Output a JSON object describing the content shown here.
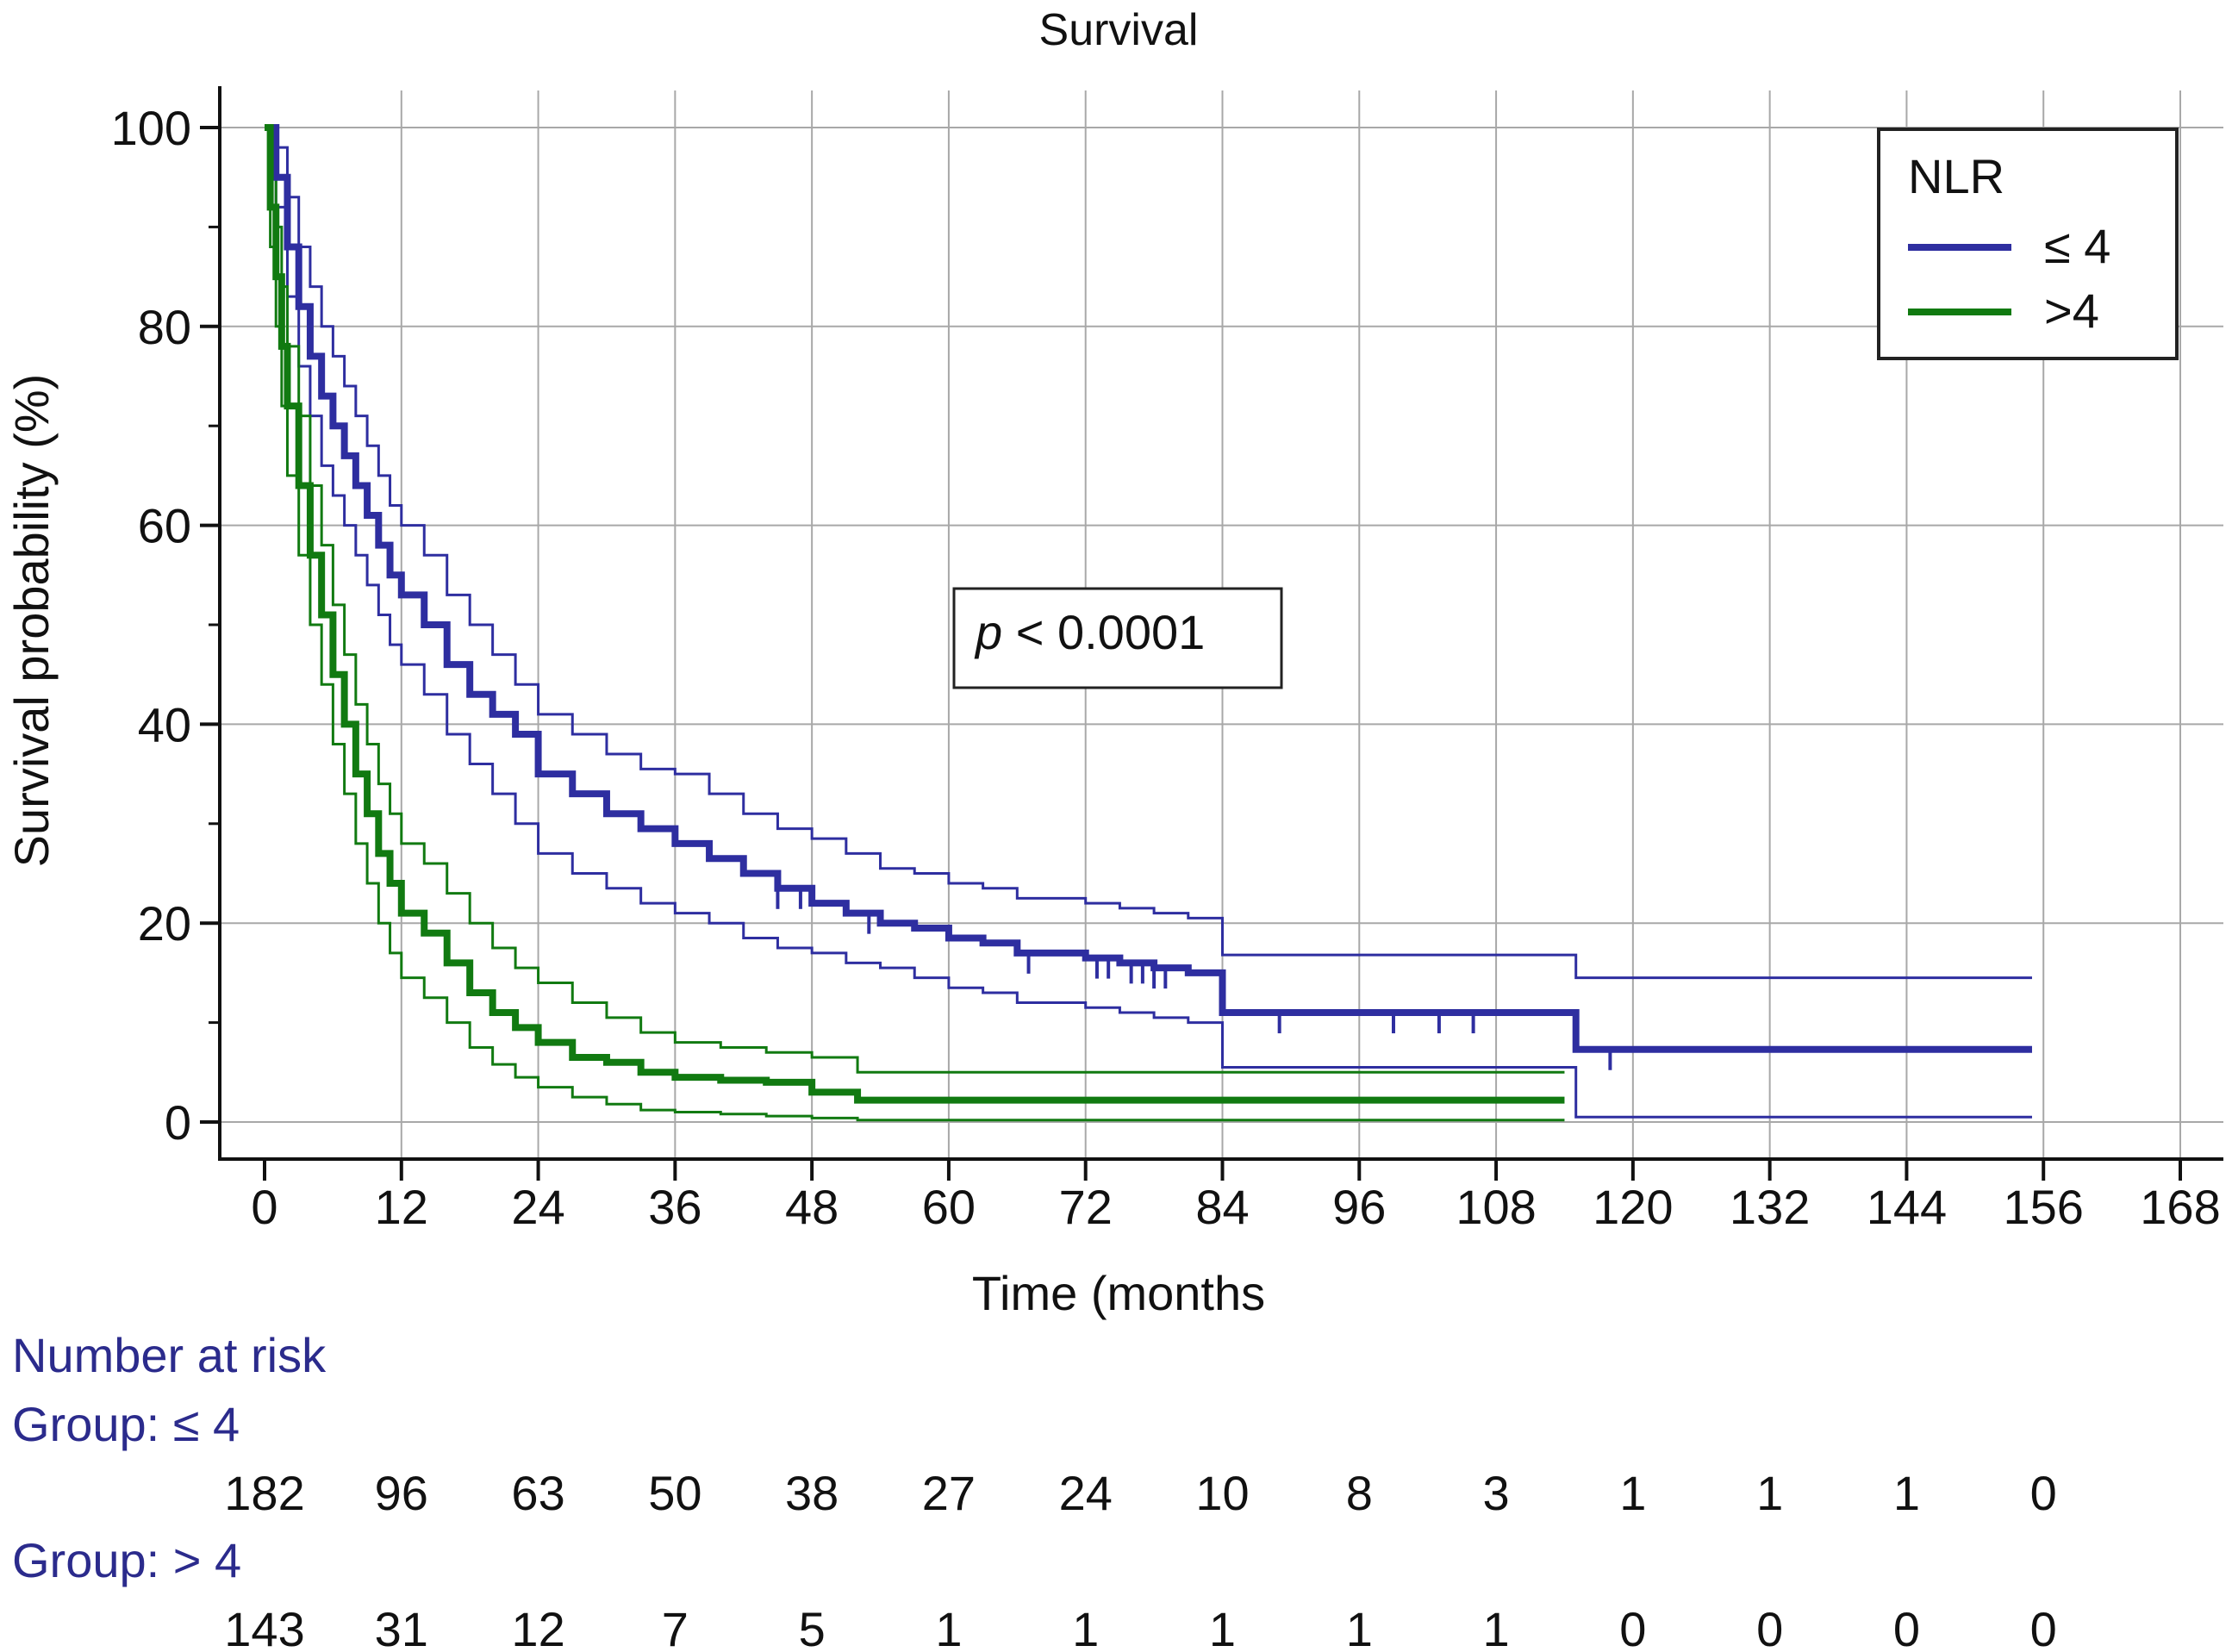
{
  "chart_data": {
    "type": "line",
    "title": "Survival",
    "xlabel": "Time (months",
    "ylabel": "Survival probability (%)",
    "xlim": [
      0,
      168
    ],
    "ylim": [
      0,
      100
    ],
    "xticks": [
      0,
      12,
      24,
      36,
      48,
      60,
      72,
      84,
      96,
      108,
      120,
      132,
      144,
      156,
      168
    ],
    "yticks": [
      0,
      20,
      40,
      60,
      80,
      100
    ],
    "grid": true,
    "legend": {
      "title": "NLR",
      "position": "top-right",
      "entries": [
        {
          "label": "≤ 4",
          "color": "#2e2ea0"
        },
        {
          "label": ">4",
          "color": "#117a11"
        }
      ]
    },
    "annotation": {
      "italic": "p",
      "text": " < 0.0001"
    },
    "series": [
      {
        "name": "≤ 4",
        "color": "#2e2ea0",
        "x": [
          0,
          1,
          2,
          3,
          4,
          5,
          6,
          7,
          8,
          9,
          10,
          11,
          12,
          14,
          16,
          18,
          20,
          22,
          24,
          27,
          30,
          33,
          36,
          39,
          42,
          45,
          48,
          51,
          54,
          57,
          60,
          63,
          66,
          69,
          72,
          75,
          78,
          81,
          84,
          87,
          90,
          93,
          96,
          99,
          102,
          105,
          108,
          111,
          114,
          115,
          120,
          130,
          140,
          150,
          155
        ],
        "y": [
          100,
          95,
          88,
          82,
          77,
          73,
          70,
          67,
          64,
          61,
          58,
          55,
          53,
          50,
          46,
          43,
          41,
          39,
          35,
          33,
          31,
          29.5,
          28,
          26.5,
          25,
          23.5,
          22,
          21,
          20,
          19.5,
          18.5,
          18,
          17,
          17,
          16.5,
          16,
          15.5,
          15,
          11,
          11,
          11,
          11,
          11,
          11,
          11,
          11,
          11,
          11,
          11,
          7.3,
          7.3,
          7.3,
          7.3,
          7.3,
          7.3
        ],
        "upper": [
          100,
          98,
          93,
          88,
          84,
          80,
          77,
          74,
          71,
          68,
          65,
          62,
          60,
          57,
          53,
          50,
          47,
          44,
          41,
          39,
          37,
          35.5,
          35,
          33,
          31,
          29.5,
          28.5,
          27,
          25.5,
          25,
          24,
          23.5,
          22.5,
          22.5,
          22,
          21.5,
          21,
          20.5,
          16.8,
          16.8,
          16.8,
          16.8,
          16.8,
          16.8,
          16.8,
          16.8,
          16.8,
          16.8,
          16.8,
          14.5,
          14.5,
          14.5,
          14.5,
          14.5,
          14.5
        ],
        "lower": [
          100,
          92,
          83,
          76,
          71,
          66,
          63,
          60,
          57,
          54,
          51,
          48,
          46,
          43,
          39,
          36,
          33,
          30,
          27,
          25,
          23.5,
          22,
          21,
          20,
          18.5,
          17.5,
          17,
          16,
          15.5,
          14.5,
          13.5,
          13,
          12,
          12,
          11.5,
          11,
          10.5,
          10,
          5.5,
          5.5,
          5.5,
          5.5,
          5.5,
          5.5,
          5.5,
          5.5,
          5.5,
          5.5,
          5.5,
          0.5,
          0.5,
          0.5,
          0.5,
          0.5,
          0.5
        ]
      },
      {
        "name": ">4",
        "color": "#117a11",
        "x": [
          0,
          0.5,
          1,
          1.5,
          2,
          3,
          4,
          5,
          6,
          7,
          8,
          9,
          10,
          11,
          12,
          14,
          16,
          18,
          20,
          22,
          24,
          27,
          30,
          33,
          36,
          40,
          44,
          48,
          52,
          60,
          72,
          84,
          96,
          108,
          114
        ],
        "y": [
          100,
          92,
          85,
          78,
          72,
          64,
          57,
          51,
          45,
          40,
          35,
          31,
          27,
          24,
          21,
          19,
          16,
          13,
          11,
          9.5,
          8,
          6.5,
          6,
          5,
          4.5,
          4.2,
          4,
          3,
          2.2,
          2.2,
          2.2,
          2.2,
          2.2,
          2.2,
          2.2
        ],
        "upper": [
          100,
          96,
          90,
          84,
          78,
          71,
          64,
          58,
          52,
          47,
          42,
          38,
          34,
          31,
          28,
          26,
          23,
          20,
          17.5,
          15.5,
          14,
          12,
          10.5,
          9,
          8,
          7.5,
          7,
          6.5,
          5,
          5,
          5,
          5,
          5,
          5,
          5
        ],
        "lower": [
          100,
          88,
          80,
          72,
          65,
          57,
          50,
          44,
          38,
          33,
          28,
          24,
          20,
          17,
          14.5,
          12.5,
          10,
          7.5,
          5.8,
          4.5,
          3.5,
          2.5,
          1.8,
          1.2,
          1,
          0.8,
          0.6,
          0.4,
          0.2,
          0.2,
          0.2,
          0.2,
          0.2,
          0.2,
          0.2
        ]
      }
    ],
    "censor_ticks": [
      {
        "series": 0,
        "x": [
          45,
          47,
          53,
          67,
          73,
          74,
          76,
          77,
          78,
          79,
          89,
          99,
          103,
          106,
          118
        ]
      },
      {
        "series": 1,
        "x": []
      }
    ]
  },
  "risk_table": {
    "title": "Number at risk",
    "groups": [
      {
        "label": "Group: ≤ 4",
        "values": [
          "182",
          "96",
          "63",
          "50",
          "38",
          "27",
          "24",
          "10",
          "8",
          "3",
          "1",
          "1",
          "1",
          "0"
        ]
      },
      {
        "label": "Group: > 4",
        "values": [
          "143",
          "31",
          "12",
          "7",
          "5",
          "1",
          "1",
          "1",
          "1",
          "1",
          "0",
          "0",
          "0",
          "0"
        ]
      }
    ]
  }
}
